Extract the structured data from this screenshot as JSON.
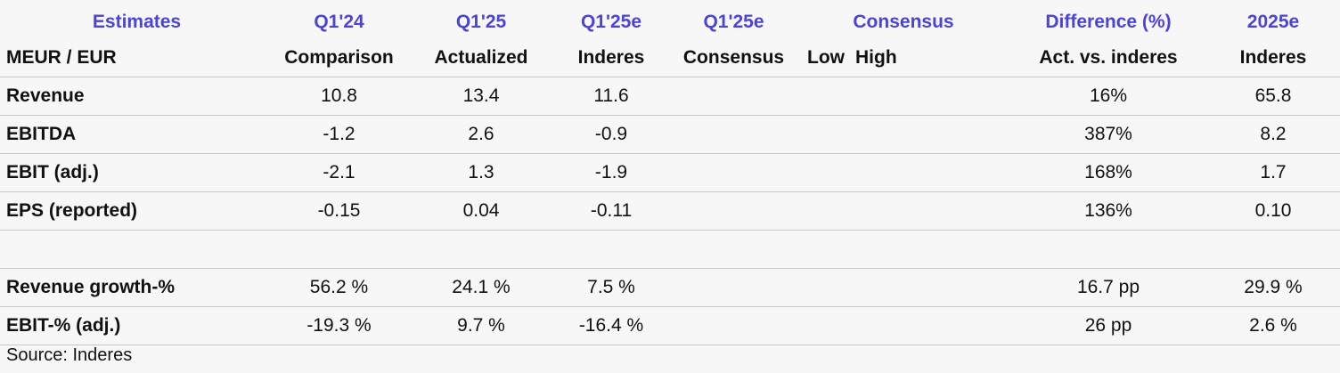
{
  "header_row1": {
    "title": "Estimates",
    "col1": "Q1'24",
    "col2": "Q1'25",
    "col3": "Q1'25e",
    "col4": "Q1'25e",
    "col5": "Consensus",
    "col6": "Difference (%)",
    "col7": "2025e"
  },
  "header_row2": {
    "unit": "MEUR / EUR",
    "col1": "Comparison",
    "col2": "Actualized",
    "col3": "Inderes",
    "col4": "Consensus",
    "col5_low": "Low",
    "col5_high": "High",
    "col6": "Act. vs. inderes",
    "col7": "Inderes"
  },
  "rows": [
    {
      "label": "Revenue",
      "q124": "10.8",
      "q125": "13.4",
      "q125e": "11.6",
      "consensus": "",
      "low": "",
      "high": "",
      "diff": "16%",
      "e2025": "65.8"
    },
    {
      "label": "EBITDA",
      "q124": "-1.2",
      "q125": "2.6",
      "q125e": "-0.9",
      "consensus": "",
      "low": "",
      "high": "",
      "diff": "387%",
      "e2025": "8.2"
    },
    {
      "label": "EBIT (adj.)",
      "q124": "-2.1",
      "q125": "1.3",
      "q125e": "-1.9",
      "consensus": "",
      "low": "",
      "high": "",
      "diff": "168%",
      "e2025": "1.7"
    },
    {
      "label": "EPS (reported)",
      "q124": "-0.15",
      "q125": "0.04",
      "q125e": "-0.11",
      "consensus": "",
      "low": "",
      "high": "",
      "diff": "136%",
      "e2025": "0.10"
    },
    {
      "label": "Revenue growth-%",
      "q124": "56.2 %",
      "q125": "24.1 %",
      "q125e": "7.5 %",
      "consensus": "",
      "low": "",
      "high": "",
      "diff": "16.7 pp",
      "e2025": "29.9 %"
    },
    {
      "label": "EBIT-% (adj.)",
      "q124": "-19.3 %",
      "q125": "9.7 %",
      "q125e": "-16.4 %",
      "consensus": "",
      "low": "",
      "high": "",
      "diff": "26 pp",
      "e2025": "2.6 %"
    }
  ],
  "source": "Source: Inderes",
  "colors": {
    "accent": "#4b44d6",
    "background": "#f7f7f7",
    "rule": "#c9c9c9"
  }
}
